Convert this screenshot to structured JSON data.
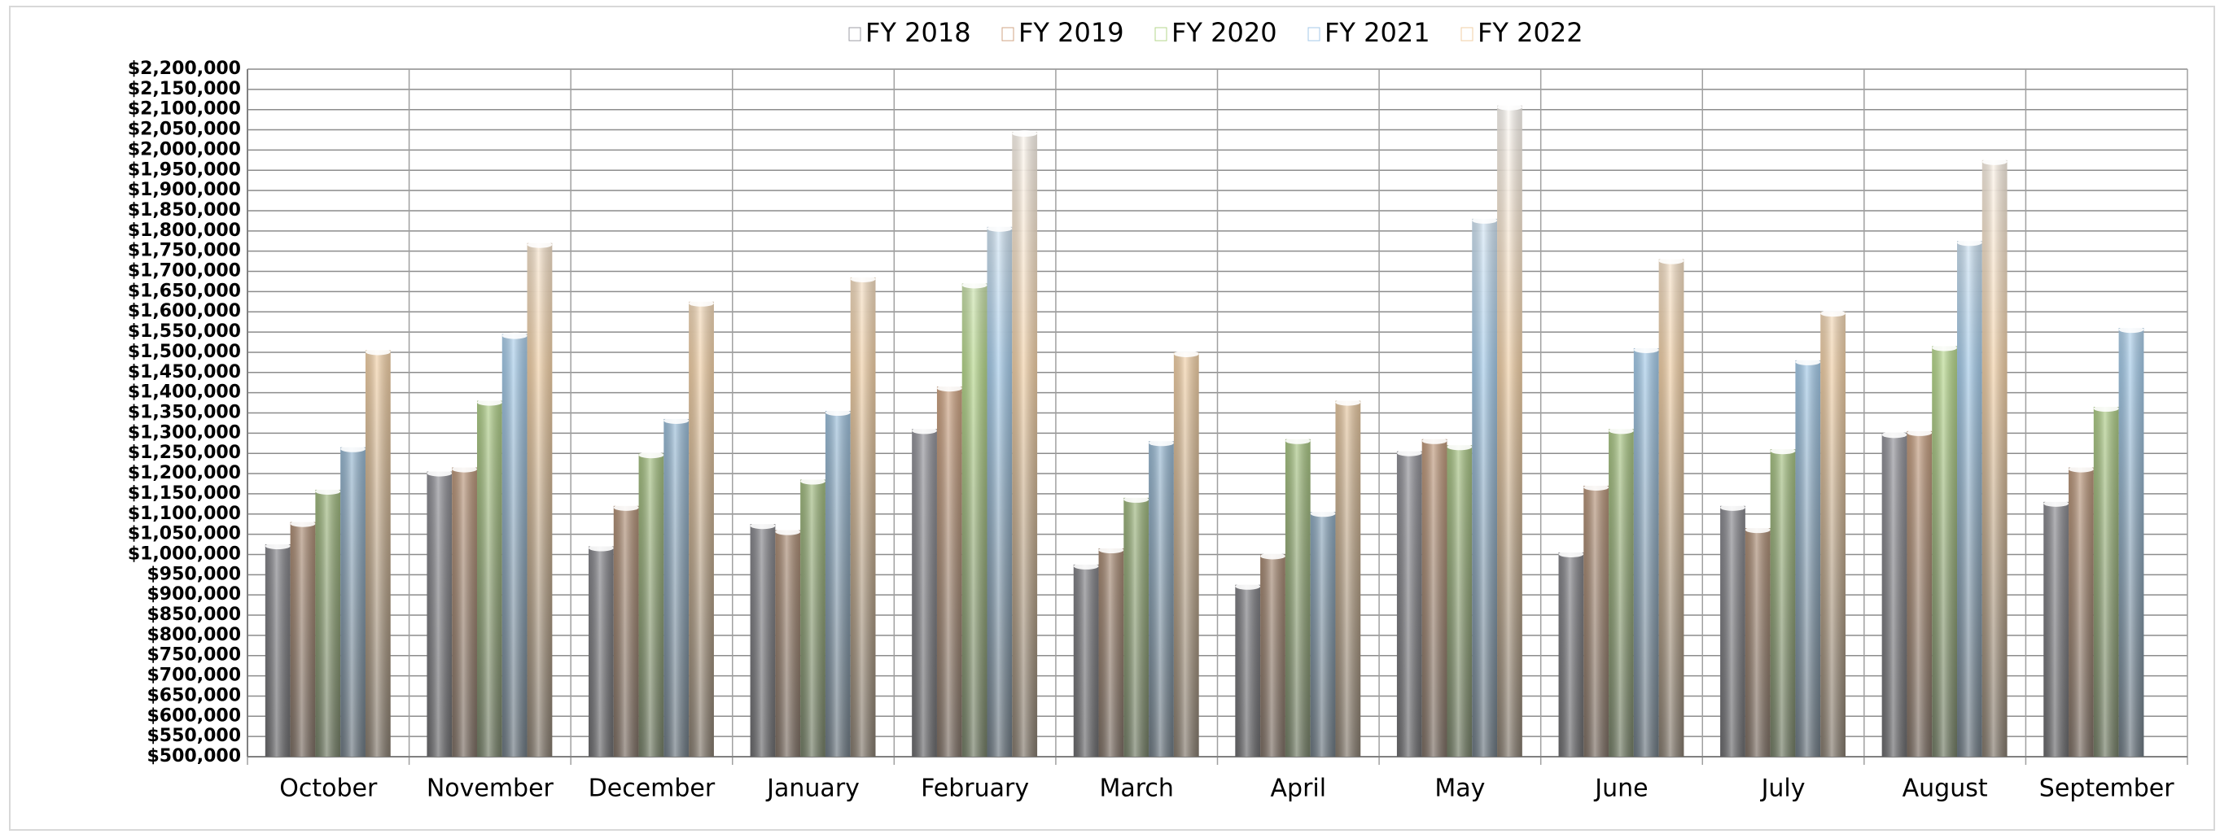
{
  "chart_data": {
    "type": "bar",
    "categories": [
      "October",
      "November",
      "December",
      "January",
      "February",
      "March",
      "April",
      "May",
      "June",
      "July",
      "August",
      "September"
    ],
    "series": [
      {
        "name": "FY 2018",
        "color": "#9c9ca4",
        "values": [
          1025000,
          1205000,
          1020000,
          1075000,
          1310000,
          975000,
          925000,
          1255000,
          1005000,
          1120000,
          1300000,
          1130000
        ]
      },
      {
        "name": "FY 2019",
        "color": "#d2a684",
        "values": [
          1080000,
          1215000,
          1120000,
          1060000,
          1415000,
          1015000,
          1000000,
          1285000,
          1170000,
          1065000,
          1305000,
          1215000
        ]
      },
      {
        "name": "FY 2020",
        "color": "#b6d78c",
        "values": [
          1160000,
          1380000,
          1250000,
          1185000,
          1670000,
          1140000,
          1285000,
          1270000,
          1310000,
          1260000,
          1515000,
          1365000
        ]
      },
      {
        "name": "FY 2021",
        "color": "#a4cae8",
        "values": [
          1265000,
          1545000,
          1335000,
          1355000,
          1810000,
          1280000,
          1105000,
          1830000,
          1510000,
          1480000,
          1775000,
          1560000
        ]
      },
      {
        "name": "FY 2022",
        "color": "#f0cfa6",
        "values": [
          1505000,
          1770000,
          1625000,
          1685000,
          2045000,
          1500000,
          1380000,
          2110000,
          1730000,
          1600000,
          1975000,
          null
        ]
      }
    ],
    "ylim": [
      500000,
      2200000
    ],
    "yticks": [
      {
        "value": 500000,
        "label": "$500,000"
      },
      {
        "value": 550000,
        "label": "$550,000"
      },
      {
        "value": 600000,
        "label": "$600,000"
      },
      {
        "value": 650000,
        "label": "$650,000"
      },
      {
        "value": 700000,
        "label": "$700,000"
      },
      {
        "value": 750000,
        "label": "$750,000"
      },
      {
        "value": 800000,
        "label": "$800,000"
      },
      {
        "value": 850000,
        "label": "$850,000"
      },
      {
        "value": 900000,
        "label": "$900,000"
      },
      {
        "value": 950000,
        "label": "$950,000"
      },
      {
        "value": 1000000,
        "label": "$1,000,000"
      },
      {
        "value": 1050000,
        "label": "$1,050,000"
      },
      {
        "value": 1100000,
        "label": "$1,100,000"
      },
      {
        "value": 1150000,
        "label": "$1,150,000"
      },
      {
        "value": 1200000,
        "label": "$1,200,000"
      },
      {
        "value": 1250000,
        "label": "$1,250,000"
      },
      {
        "value": 1300000,
        "label": "$1,300,000"
      },
      {
        "value": 1350000,
        "label": "$1,350,000"
      },
      {
        "value": 1400000,
        "label": "$1,400,000"
      },
      {
        "value": 1450000,
        "label": "$1,450,000"
      },
      {
        "value": 1500000,
        "label": "$1,500,000"
      },
      {
        "value": 1550000,
        "label": "$1,550,000"
      },
      {
        "value": 1600000,
        "label": "$1,600,000"
      },
      {
        "value": 1650000,
        "label": "$1,650,000"
      },
      {
        "value": 1700000,
        "label": "$1,700,000"
      },
      {
        "value": 1750000,
        "label": "$1,750,000"
      },
      {
        "value": 1800000,
        "label": "$1,800,000"
      },
      {
        "value": 1850000,
        "label": "$1,850,000"
      },
      {
        "value": 1900000,
        "label": "$1,900,000"
      },
      {
        "value": 1950000,
        "label": "$1,950,000"
      },
      {
        "value": 2000000,
        "label": "$2,000,000"
      },
      {
        "value": 2050000,
        "label": "$2,050,000"
      },
      {
        "value": 2100000,
        "label": "$2,100,000"
      },
      {
        "value": 2150000,
        "label": "$2,150,000"
      },
      {
        "value": 2200000,
        "label": "$2,200,000"
      }
    ],
    "grid": true,
    "legend": "top"
  }
}
